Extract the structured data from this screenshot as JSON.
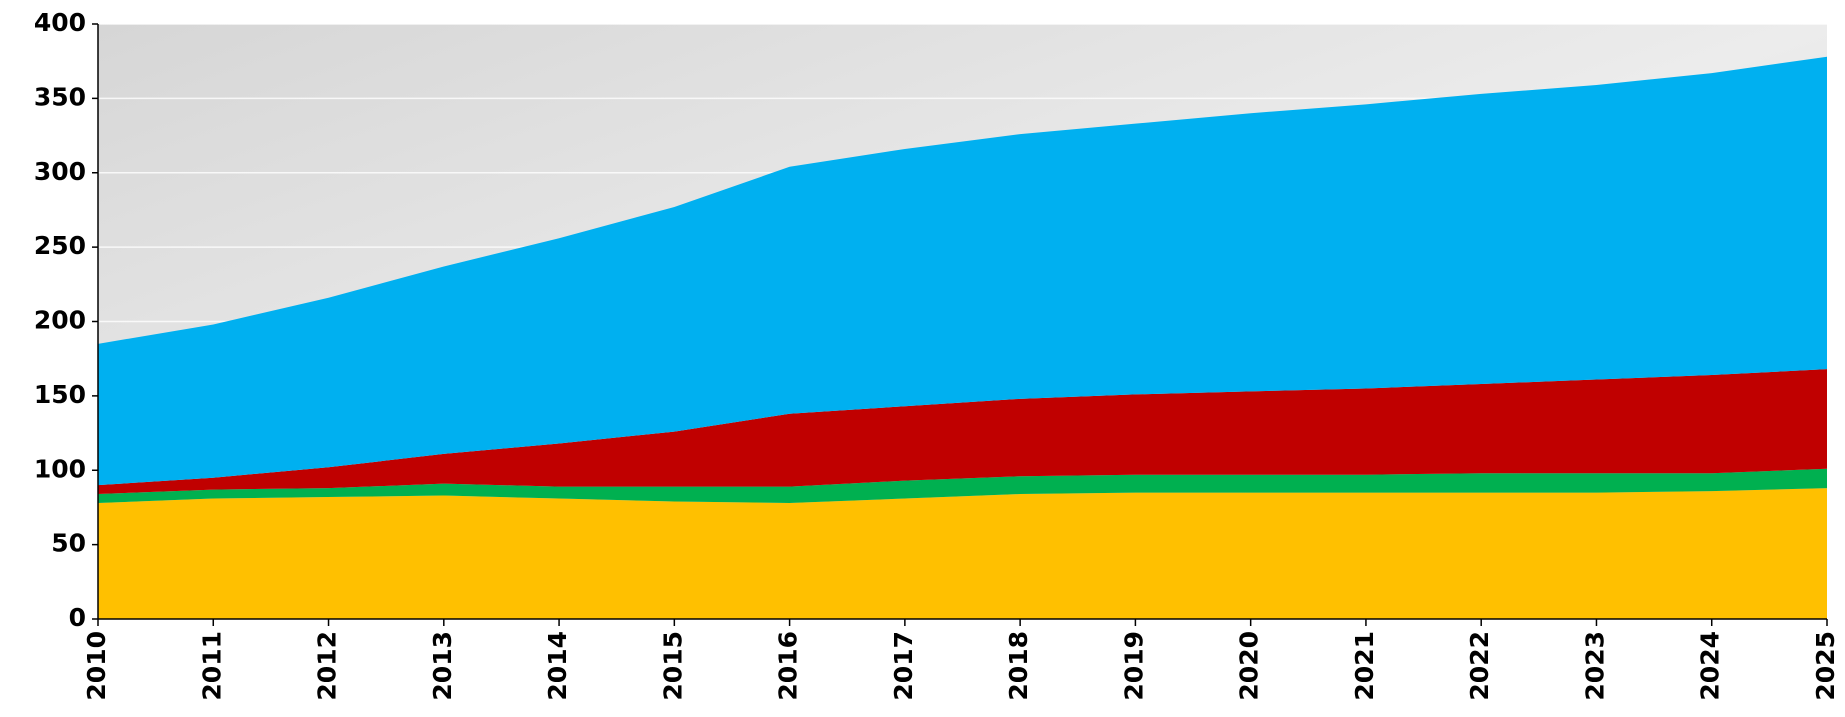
{
  "chart_data": {
    "type": "stacked_area",
    "x": [
      2010,
      2011,
      2012,
      2013,
      2014,
      2015,
      2016,
      2017,
      2018,
      2019,
      2020,
      2021,
      2022,
      2023,
      2024,
      2025
    ],
    "xlim": [
      2010,
      2025
    ],
    "ylim": [
      0,
      400
    ],
    "yticks": [
      0,
      50,
      100,
      150,
      200,
      250,
      300,
      350,
      400
    ],
    "grid": true,
    "series": [
      {
        "color": "#ffc000",
        "values": [
          78,
          81,
          82,
          83,
          81,
          79,
          78,
          81,
          84,
          85,
          85,
          85,
          85,
          85,
          86,
          88
        ]
      },
      {
        "color": "#00b050",
        "values": [
          6,
          6,
          6,
          8,
          8,
          10,
          11,
          12,
          12,
          12,
          12,
          12,
          13,
          13,
          12,
          13
        ]
      },
      {
        "color": "#c00000",
        "values": [
          6,
          8,
          14,
          20,
          29,
          37,
          49,
          50,
          52,
          54,
          56,
          58,
          60,
          63,
          66,
          67
        ]
      },
      {
        "color": "#00b0f0",
        "values": [
          95,
          103,
          114,
          126,
          138,
          151,
          166,
          173,
          178,
          182,
          187,
          191,
          195,
          198,
          203,
          210
        ]
      }
    ]
  }
}
